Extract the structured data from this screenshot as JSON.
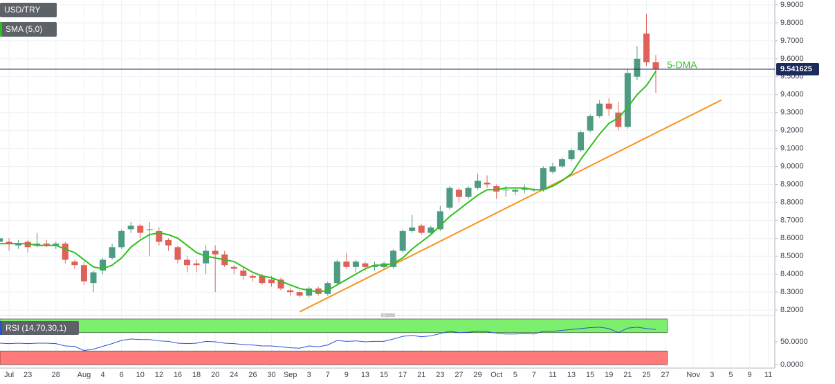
{
  "chart_data": [
    {
      "type": "candlestick",
      "title": "USD/TRY",
      "up_color": "#4e9a82",
      "down_color": "#e0605a",
      "grid": true,
      "categories": [
        null,
        "Jul",
        null,
        "23",
        null,
        null,
        "28",
        null,
        null,
        "Aug",
        null,
        "4",
        null,
        "6",
        null,
        "10",
        null,
        "12",
        null,
        "16",
        null,
        "18",
        null,
        "20",
        null,
        "24",
        null,
        "26",
        null,
        "30",
        null,
        "Sep",
        null,
        "3",
        null,
        "7",
        null,
        "9",
        null,
        "13",
        null,
        "15",
        null,
        "17",
        null,
        "21",
        null,
        "23",
        null,
        "27",
        null,
        "29",
        null,
        "Oct",
        null,
        "5",
        null,
        "7",
        null,
        "11",
        null,
        "13",
        null,
        "15",
        null,
        "19",
        null,
        "21",
        null,
        "25",
        null,
        "27",
        null,
        null,
        "Nov",
        null,
        "3",
        null,
        "5",
        null,
        "9",
        null,
        "11"
      ],
      "open": [
        8.58,
        8.58,
        8.56,
        8.58,
        8.56,
        8.57,
        8.56,
        8.57,
        8.47,
        8.45,
        8.35,
        8.42,
        8.49,
        8.55,
        8.65,
        8.67,
        8.65,
        8.64,
        8.59,
        8.55,
        8.48,
        8.46,
        8.46,
        8.53,
        8.51,
        8.44,
        8.42,
        8.39,
        8.39,
        8.37,
        8.37,
        8.31,
        8.3,
        8.28,
        8.32,
        8.29,
        8.35,
        8.47,
        8.44,
        8.46,
        8.44,
        8.44,
        8.44,
        8.53,
        8.64,
        8.67,
        8.63,
        8.65,
        8.77,
        8.87,
        8.83,
        8.88,
        8.91,
        8.89,
        8.87,
        8.86,
        8.87,
        8.87,
        8.87,
        8.97,
        9.0,
        9.04,
        9.09,
        9.2,
        9.28,
        9.35,
        9.3,
        9.22,
        9.5,
        9.74,
        9.58,
        null,
        null,
        null,
        null,
        null,
        null,
        null,
        null,
        null,
        null,
        null,
        null
      ],
      "high": [
        8.62,
        8.6,
        8.59,
        8.59,
        8.63,
        8.59,
        8.58,
        8.58,
        8.48,
        8.47,
        8.42,
        8.49,
        8.57,
        8.65,
        8.69,
        8.68,
        8.69,
        8.66,
        8.6,
        8.56,
        8.5,
        8.48,
        8.56,
        8.56,
        8.53,
        8.45,
        8.44,
        8.4,
        8.4,
        8.39,
        8.38,
        8.32,
        8.31,
        8.33,
        8.33,
        8.36,
        8.48,
        8.52,
        8.48,
        8.47,
        8.47,
        8.47,
        8.54,
        8.65,
        8.73,
        8.68,
        8.67,
        8.78,
        8.89,
        8.88,
        8.89,
        8.96,
        8.95,
        8.9,
        8.89,
        8.88,
        8.9,
        8.88,
        9.0,
        9.02,
        9.05,
        9.1,
        9.2,
        9.29,
        9.37,
        9.38,
        9.36,
        9.54,
        9.67,
        9.85,
        9.62,
        null,
        null,
        null,
        null,
        null,
        null,
        null,
        null,
        null,
        null,
        null,
        null
      ],
      "low": [
        8.55,
        8.53,
        8.54,
        8.52,
        8.55,
        8.55,
        8.54,
        8.46,
        8.43,
        8.34,
        8.3,
        8.4,
        8.48,
        8.54,
        8.63,
        8.6,
        8.5,
        8.56,
        8.53,
        8.46,
        8.41,
        8.41,
        8.4,
        8.3,
        8.44,
        8.4,
        8.37,
        8.36,
        8.34,
        8.33,
        8.31,
        8.28,
        8.27,
        8.27,
        8.28,
        8.28,
        8.34,
        8.43,
        8.41,
        8.42,
        8.42,
        8.43,
        8.43,
        8.52,
        8.63,
        8.62,
        8.62,
        8.64,
        8.76,
        8.8,
        8.82,
        8.87,
        8.88,
        8.82,
        8.83,
        8.84,
        8.85,
        8.86,
        8.86,
        8.96,
        8.99,
        9.03,
        9.08,
        9.19,
        9.27,
        9.28,
        9.2,
        9.21,
        9.48,
        9.56,
        9.41,
        null,
        null,
        null,
        null,
        null,
        null,
        null,
        null,
        null,
        null,
        null,
        null
      ],
      "close": [
        8.6,
        8.57,
        8.57,
        8.55,
        8.57,
        8.56,
        8.57,
        8.48,
        8.45,
        8.36,
        8.41,
        8.48,
        8.55,
        8.64,
        8.67,
        8.63,
        8.65,
        8.58,
        8.56,
        8.48,
        8.45,
        8.45,
        8.53,
        8.51,
        8.45,
        8.43,
        8.39,
        8.38,
        8.35,
        8.35,
        8.32,
        8.3,
        8.28,
        8.32,
        8.29,
        8.35,
        8.47,
        8.44,
        8.47,
        8.44,
        8.45,
        8.46,
        8.53,
        8.64,
        8.66,
        8.63,
        8.66,
        8.75,
        8.88,
        8.83,
        8.88,
        8.92,
        8.9,
        8.86,
        8.87,
        8.87,
        8.88,
        8.87,
        8.99,
        9.0,
        9.04,
        9.09,
        9.19,
        9.28,
        9.35,
        9.32,
        9.22,
        9.52,
        9.6,
        9.58,
        9.54,
        null,
        null,
        null,
        null,
        null,
        null,
        null,
        null,
        null,
        null,
        null,
        null
      ],
      "series": [
        {
          "name": "SMA (5,0)",
          "color": "#2ec01a",
          "values": [
            8.57,
            8.57,
            8.57,
            8.57,
            8.56,
            8.56,
            8.56,
            8.54,
            8.52,
            8.48,
            8.44,
            8.43,
            8.45,
            8.49,
            8.55,
            8.59,
            8.62,
            8.63,
            8.62,
            8.6,
            8.56,
            8.52,
            8.5,
            8.49,
            8.48,
            8.47,
            8.44,
            8.41,
            8.39,
            8.38,
            8.36,
            8.34,
            8.32,
            8.31,
            8.3,
            8.31,
            8.34,
            8.37,
            8.4,
            8.43,
            8.45,
            8.45,
            8.46,
            8.49,
            8.54,
            8.58,
            8.62,
            8.67,
            8.72,
            8.76,
            8.8,
            8.84,
            8.87,
            8.87,
            8.88,
            8.88,
            8.88,
            8.87,
            8.87,
            8.89,
            8.92,
            8.96,
            9.04,
            9.11,
            9.18,
            9.24,
            9.27,
            9.33,
            9.4,
            9.45,
            9.53,
            null,
            null,
            null,
            null,
            null,
            null,
            null,
            null,
            null,
            null,
            null,
            null
          ]
        }
      ],
      "annotation": "5-DMA",
      "trendline": {
        "color": "#f7941d",
        "x": [
          32,
          77
        ],
        "values": [
          8.19,
          9.37
        ]
      },
      "last_price": 9.541625,
      "ylim": [
        8.185,
        9.927
      ],
      "yticks": [
        {
          "value": 8.2,
          "label": "8.2000"
        },
        {
          "value": 8.3,
          "label": "8.3000"
        },
        {
          "value": 8.4,
          "label": "8.4000"
        },
        {
          "value": 8.5,
          "label": "8.5000"
        },
        {
          "value": 8.6,
          "label": "8.6000"
        },
        {
          "value": 8.7,
          "label": "8.7000"
        },
        {
          "value": 8.8,
          "label": "8.8000"
        },
        {
          "value": 8.9,
          "label": "8.9000"
        },
        {
          "value": 9.0,
          "label": "9.0000"
        },
        {
          "value": 9.1,
          "label": "9.1000"
        },
        {
          "value": 9.2,
          "label": "9.2000"
        },
        {
          "value": 9.3,
          "label": "9.3000"
        },
        {
          "value": 9.4,
          "label": "9.4000"
        },
        {
          "value": 9.5,
          "label": "9.5000"
        },
        {
          "value": 9.6,
          "label": "9.6000"
        },
        {
          "value": 9.7,
          "label": "9.7000"
        },
        {
          "value": 9.8,
          "label": "9.8000"
        },
        {
          "value": 9.9,
          "label": "9.9000"
        }
      ]
    },
    {
      "type": "line",
      "title": "RSI (14,70,30,1)",
      "color": "#2a50d8",
      "overbought": [
        70,
        100
      ],
      "overbought_color": "#7cf06c",
      "oversold": [
        0,
        30
      ],
      "oversold_color": "#ff7b7b",
      "values": [
        47,
        46,
        47,
        46,
        47,
        47,
        46,
        41,
        40,
        31,
        34,
        40,
        46,
        53,
        56,
        55,
        55,
        52,
        51,
        47,
        46,
        47,
        51,
        50,
        47,
        46,
        44,
        43,
        41,
        41,
        39,
        37,
        36,
        41,
        39,
        43,
        53,
        51,
        52,
        50,
        51,
        51,
        56,
        62,
        64,
        61,
        63,
        68,
        73,
        70,
        71,
        73,
        72,
        69,
        67,
        67,
        68,
        67,
        73,
        73,
        75,
        77,
        79,
        81,
        82,
        79,
        70,
        80,
        82,
        79,
        77,
        null,
        null,
        null,
        null,
        null,
        null,
        null,
        null,
        null,
        null,
        null,
        null
      ],
      "ylim": [
        -4.5,
        101.5
      ],
      "yticks": [
        {
          "value": 50,
          "label": "50.0000"
        },
        {
          "value": 0,
          "label": "0.0000"
        }
      ]
    }
  ]
}
